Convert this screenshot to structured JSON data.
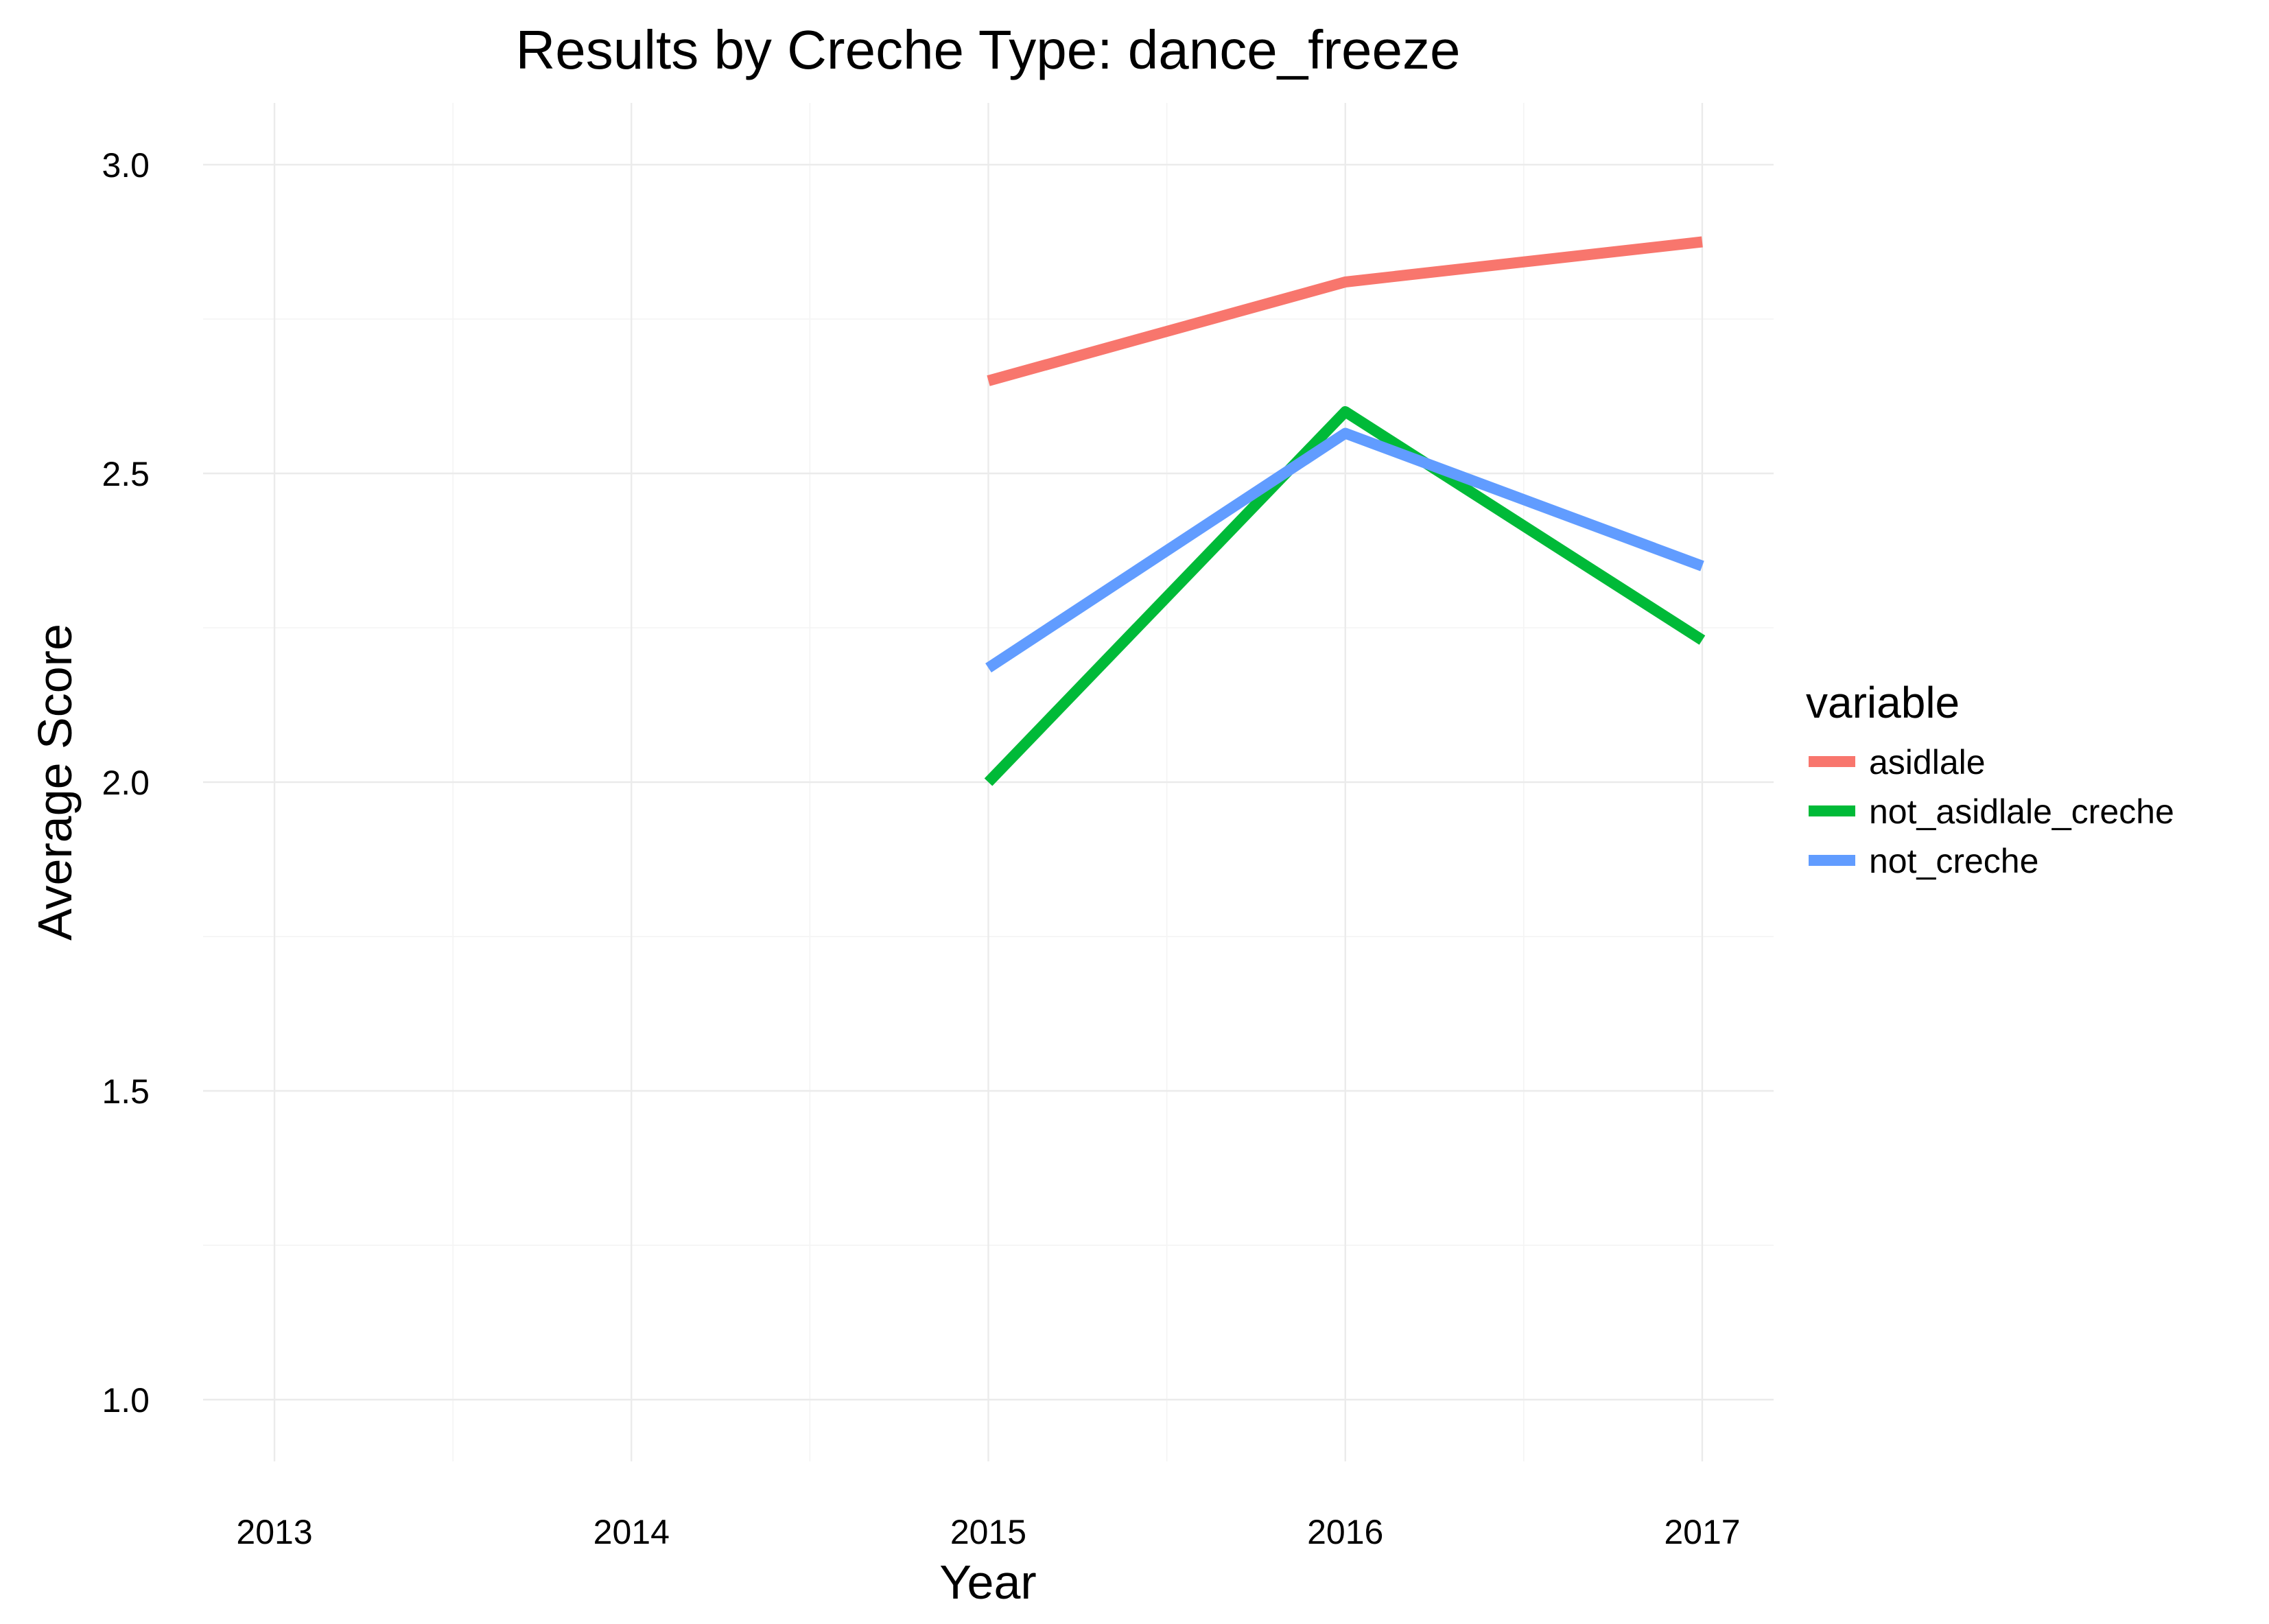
{
  "chart_data": {
    "type": "line",
    "title": "Results by Creche Type: dance_freeze",
    "xlabel": "Year",
    "ylabel": "Average Score",
    "x": [
      2015,
      2016,
      2017
    ],
    "xlim": [
      2012.8,
      2017.2
    ],
    "ylim": [
      0.9,
      3.1
    ],
    "xticks": [
      "2013",
      "2014",
      "2015",
      "2016",
      "2017"
    ],
    "yticks": [
      "1.0",
      "1.5",
      "2.0",
      "2.5",
      "3.0"
    ],
    "grid": true,
    "legend": {
      "title": "variable",
      "position": "right"
    },
    "series": [
      {
        "name": "asidlale",
        "color": "#F8766D",
        "values": [
          2.65,
          2.81,
          2.875
        ]
      },
      {
        "name": "not_asidlale_creche",
        "color": "#00BA38",
        "values": [
          2.0,
          2.6,
          2.23
        ]
      },
      {
        "name": "not_creche",
        "color": "#619CFF",
        "values": [
          2.185,
          2.565,
          2.35
        ]
      }
    ]
  }
}
